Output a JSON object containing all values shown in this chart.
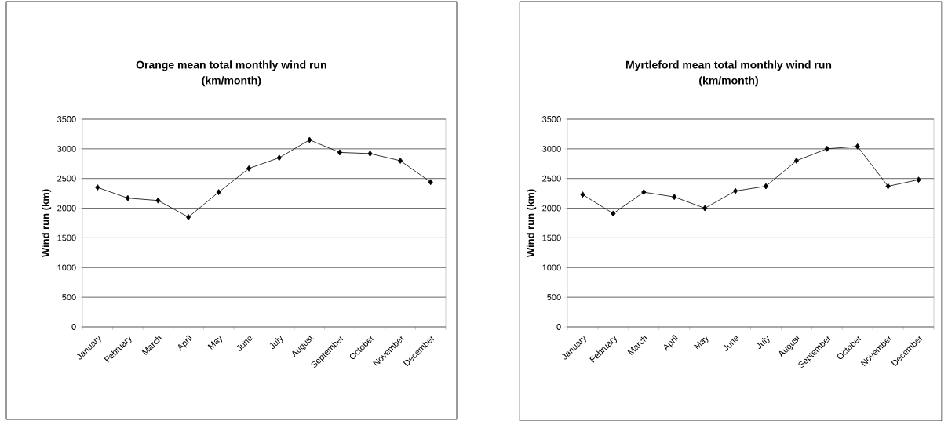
{
  "chart_data": [
    {
      "type": "line",
      "title": "Orange mean total monthly wind run\n(km/month)",
      "ylabel": "Wind run (km)",
      "categories": [
        "January",
        "February",
        "March",
        "April",
        "May",
        "June",
        "July",
        "August",
        "September",
        "October",
        "November",
        "December"
      ],
      "values": [
        2350,
        2170,
        2130,
        1850,
        2270,
        2670,
        2850,
        3150,
        2940,
        2920,
        2800,
        2440
      ],
      "color": "#000000",
      "ylim": [
        0,
        3500
      ],
      "yticks": [
        0,
        500,
        1000,
        1500,
        2000,
        2500,
        3000,
        3500
      ],
      "grid": "y",
      "marker": "diamond",
      "line_style": "solid"
    },
    {
      "type": "line",
      "title": "Myrtleford mean total monthly wind run\n(km/month)",
      "ylabel": "Wind run (km)",
      "categories": [
        "January",
        "February",
        "March",
        "April",
        "May",
        "June",
        "July",
        "August",
        "September",
        "October",
        "November",
        "December"
      ],
      "values": [
        2230,
        1910,
        2270,
        2190,
        2000,
        2290,
        2370,
        2800,
        3000,
        3040,
        2370,
        2480
      ],
      "color": "#000000",
      "ylim": [
        0,
        3500
      ],
      "yticks": [
        0,
        500,
        1000,
        1500,
        2000,
        2500,
        3000,
        3500
      ],
      "grid": "y",
      "marker": "diamond",
      "line_style": "solid"
    }
  ]
}
